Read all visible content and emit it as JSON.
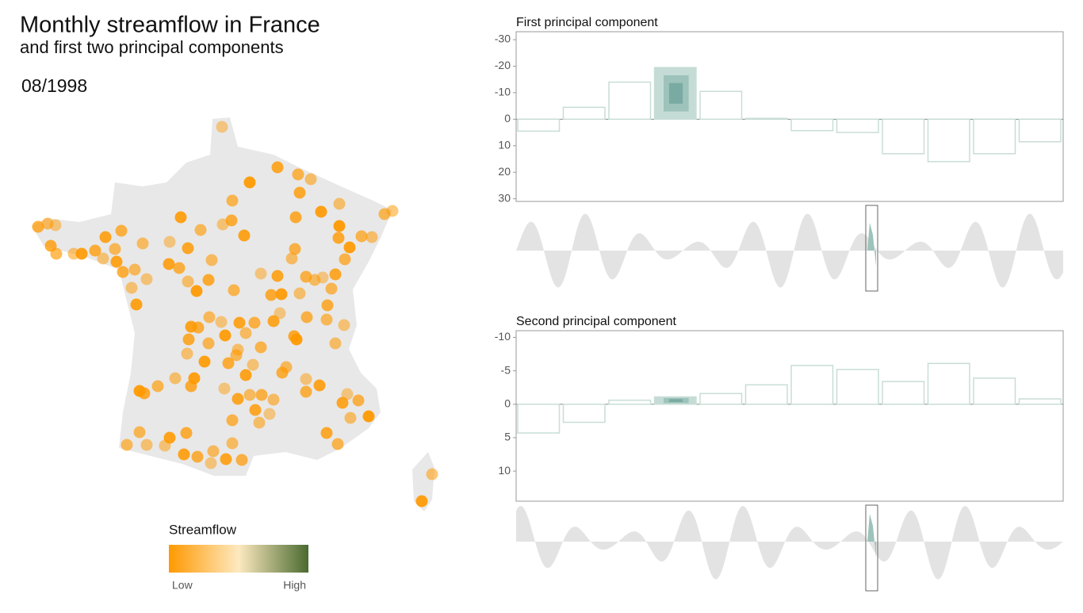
{
  "header": {
    "title": "Monthly streamflow in France",
    "subtitle": "and first two principal components",
    "date": "08/1998"
  },
  "legend": {
    "title": "Streamflow",
    "low": "Low",
    "high": "High",
    "colors": [
      "#ff9900",
      "#fde9c0",
      "#4a6a30"
    ]
  },
  "chart_data": [
    {
      "type": "bar",
      "title": "First principal component",
      "values": [
        4.5,
        -4.5,
        -14,
        -19.5,
        -10.5,
        -0.3,
        4.3,
        5,
        13,
        16,
        13,
        8.5
      ],
      "ylim": [
        -33,
        31
      ],
      "yticks": [
        -30,
        -20,
        -10,
        0,
        10,
        20,
        30
      ],
      "y_inverted": true,
      "color": "#c8ddd6",
      "highlight_index": 3,
      "highlight_color": "#c5dcd6"
    },
    {
      "type": "bar",
      "title": "Second principal component",
      "values": [
        4.3,
        2.7,
        -0.6,
        -1.1,
        -1.6,
        -2.9,
        -5.8,
        -5.2,
        -3.4,
        -6.1,
        -3.9,
        -0.8
      ],
      "ylim": [
        -11,
        14.5
      ],
      "yticks": [
        -10,
        -5,
        0,
        5,
        10
      ],
      "y_inverted": true,
      "color": "#c8ddd6",
      "highlight_index": 3,
      "highlight_color": "#c5dcd6"
    }
  ]
}
